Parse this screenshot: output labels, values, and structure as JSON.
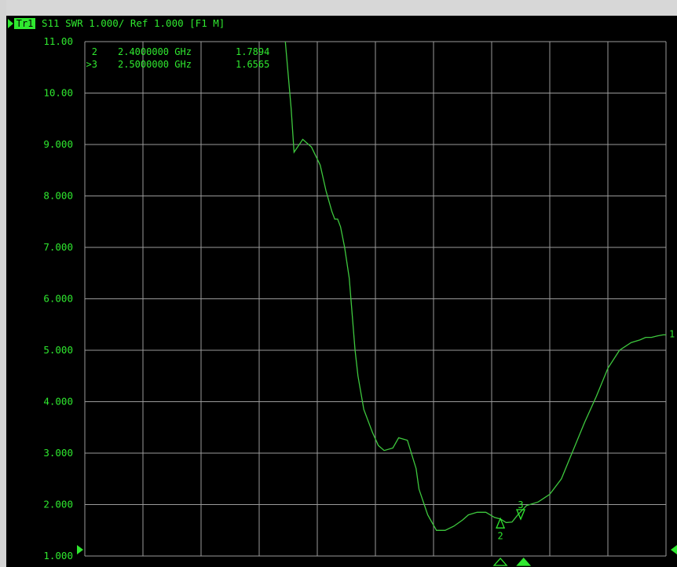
{
  "header": {
    "trace_badge": "Tr1",
    "measurement": "S11 SWR 1.000/ Ref 1.000 [F1 M]"
  },
  "marker_table": [
    {
      "id": "2",
      "freq": "2.4000000 GHz",
      "value": "1.7894"
    },
    {
      "id": ">3",
      "freq": "2.5000000 GHz",
      "value": "1.6565"
    }
  ],
  "colors": {
    "trace": "#3ec83e",
    "grid": "#9a9a9a",
    "text": "#2fe82f",
    "background": "#000000",
    "badge_bg": "#2fe82f",
    "badge_fg": "#000000"
  },
  "chart_data": {
    "type": "line",
    "ylim": [
      1.0,
      11.0
    ],
    "y_ticks": [
      "11.00",
      "10.00",
      "9.000",
      "8.000",
      "7.000",
      "6.000",
      "5.000",
      "4.000",
      "3.000",
      "2.000",
      "1.000"
    ],
    "x_divisions": 10,
    "grid": true,
    "series": [
      {
        "x": [
          3.45,
          3.55,
          3.6,
          3.75,
          3.9,
          4.05,
          4.15,
          4.25,
          4.3,
          4.35,
          4.4,
          4.47,
          4.55,
          4.65,
          4.7,
          4.8,
          4.95,
          5.05,
          5.15,
          5.3,
          5.4,
          5.55,
          5.7,
          5.75,
          5.9,
          6.05,
          6.2,
          6.35,
          6.5,
          6.6,
          6.75,
          6.9,
          7.05,
          7.15,
          7.25,
          7.35,
          7.45,
          7.6,
          7.8,
          8.0,
          8.2,
          8.4,
          8.6,
          8.8,
          9.0,
          9.2,
          9.4,
          9.55,
          9.65,
          9.75,
          9.85,
          9.95,
          10.0
        ],
        "y": [
          11.0,
          9.7,
          8.85,
          9.1,
          8.95,
          8.6,
          8.1,
          7.7,
          7.55,
          7.55,
          7.4,
          7.0,
          6.4,
          5.0,
          4.5,
          3.85,
          3.4,
          3.15,
          3.05,
          3.1,
          3.3,
          3.25,
          2.7,
          2.3,
          1.8,
          1.5,
          1.5,
          1.58,
          1.7,
          1.8,
          1.85,
          1.85,
          1.75,
          1.72,
          1.65,
          1.66,
          1.8,
          1.98,
          2.05,
          2.2,
          2.5,
          3.05,
          3.6,
          4.1,
          4.65,
          5.0,
          5.15,
          5.2,
          5.25,
          5.25,
          5.28,
          5.3,
          5.3
        ]
      }
    ],
    "markers": [
      {
        "label": "1",
        "x": 10.0,
        "y": 5.28,
        "style": "number"
      },
      {
        "label": "2",
        "x": 7.15,
        "y": 1.7894,
        "style": "up-open"
      },
      {
        "label": "3",
        "x": 7.5,
        "y": 1.6565,
        "style": "down-open"
      }
    ],
    "bottom_markers": [
      {
        "x": 7.15,
        "filled": false
      },
      {
        "x": 7.55,
        "filled": true
      }
    ]
  }
}
